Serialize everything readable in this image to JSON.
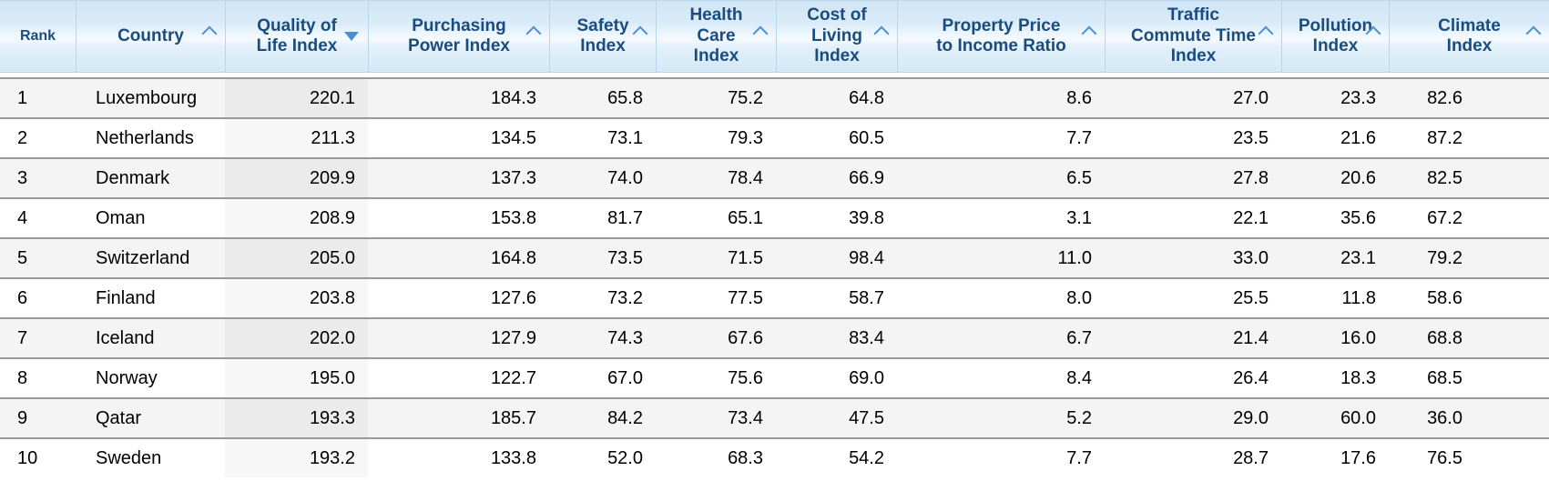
{
  "table": {
    "name": "quality-of-life-rankings",
    "columns": [
      {
        "key": "rank",
        "label": "Rank",
        "align": "left",
        "sort_indicator": "none",
        "sorted": false
      },
      {
        "key": "country",
        "label": "Country",
        "align": "left",
        "sort_indicator": "up",
        "sorted": false
      },
      {
        "key": "qol",
        "label": "Quality of\nLife Index",
        "align": "right",
        "sort_indicator": "down",
        "sorted": true
      },
      {
        "key": "pp",
        "label": "Purchasing\nPower Index",
        "align": "right",
        "sort_indicator": "up",
        "sorted": false
      },
      {
        "key": "safety",
        "label": "Safety\nIndex",
        "align": "right",
        "sort_indicator": "up",
        "sorted": false
      },
      {
        "key": "hc",
        "label": "Health\nCare\nIndex",
        "align": "right",
        "sort_indicator": "up",
        "sorted": false
      },
      {
        "key": "col",
        "label": "Cost of\nLiving\nIndex",
        "align": "right",
        "sort_indicator": "up",
        "sorted": false
      },
      {
        "key": "ppir",
        "label": "Property Price\nto Income Ratio",
        "align": "right",
        "sort_indicator": "up",
        "sorted": false
      },
      {
        "key": "tct",
        "label": "Traffic\nCommute Time\nIndex",
        "align": "right",
        "sort_indicator": "up",
        "sorted": false
      },
      {
        "key": "poll",
        "label": "Pollution\nIndex",
        "align": "right",
        "sort_indicator": "up",
        "sorted": false
      },
      {
        "key": "climate",
        "label": "Climate\nIndex",
        "align": "right",
        "sort_indicator": "up",
        "sorted": false
      }
    ],
    "rows": [
      [
        "1",
        "Luxembourg",
        "220.1",
        "184.3",
        "65.8",
        "75.2",
        "64.8",
        "8.6",
        "27.0",
        "23.3",
        "82.6"
      ],
      [
        "2",
        "Netherlands",
        "211.3",
        "134.5",
        "73.1",
        "79.3",
        "60.5",
        "7.7",
        "23.5",
        "21.6",
        "87.2"
      ],
      [
        "3",
        "Denmark",
        "209.9",
        "137.3",
        "74.0",
        "78.4",
        "66.9",
        "6.5",
        "27.8",
        "20.6",
        "82.5"
      ],
      [
        "4",
        "Oman",
        "208.9",
        "153.8",
        "81.7",
        "65.1",
        "39.8",
        "3.1",
        "22.1",
        "35.6",
        "67.2"
      ],
      [
        "5",
        "Switzerland",
        "205.0",
        "164.8",
        "73.5",
        "71.5",
        "98.4",
        "11.0",
        "33.0",
        "23.1",
        "79.2"
      ],
      [
        "6",
        "Finland",
        "203.8",
        "127.6",
        "73.2",
        "77.5",
        "58.7",
        "8.0",
        "25.5",
        "11.8",
        "58.6"
      ],
      [
        "7",
        "Iceland",
        "202.0",
        "127.9",
        "74.3",
        "67.6",
        "83.4",
        "6.7",
        "21.4",
        "16.0",
        "68.8"
      ],
      [
        "8",
        "Norway",
        "195.0",
        "122.7",
        "67.0",
        "75.6",
        "69.0",
        "8.4",
        "26.4",
        "18.3",
        "68.5"
      ],
      [
        "9",
        "Qatar",
        "193.3",
        "185.7",
        "84.2",
        "73.4",
        "47.5",
        "5.2",
        "29.0",
        "60.0",
        "36.0"
      ],
      [
        "10",
        "Sweden",
        "193.2",
        "133.8",
        "52.0",
        "68.3",
        "54.2",
        "7.7",
        "28.7",
        "17.6",
        "76.5"
      ]
    ],
    "colors": {
      "header_text": "#1b4c7f",
      "sort_icon": "#4a8fd3",
      "header_bg_top": "#d0e5f5",
      "header_bg_mid": "#f4fafe",
      "header_border": "#b9d5e9",
      "row_separator": "#999999",
      "row_odd_bg": "#f4f4f4",
      "row_even_bg": "#ffffff",
      "sorted_cell_odd_bg": "#ebebeb",
      "sorted_cell_even_bg": "#f7f7f7",
      "cell_text": "#000000"
    }
  },
  "chart_data": {
    "type": "table",
    "title": "Quality of Life Index by Country",
    "columns": [
      "Rank",
      "Country",
      "Quality of Life Index",
      "Purchasing Power Index",
      "Safety Index",
      "Health Care Index",
      "Cost of Living Index",
      "Property Price to Income Ratio",
      "Traffic Commute Time Index",
      "Pollution Index",
      "Climate Index"
    ],
    "sorted_by": "Quality of Life Index",
    "sort_direction": "descending",
    "rows": [
      [
        1,
        "Luxembourg",
        220.1,
        184.3,
        65.8,
        75.2,
        64.8,
        8.6,
        27.0,
        23.3,
        82.6
      ],
      [
        2,
        "Netherlands",
        211.3,
        134.5,
        73.1,
        79.3,
        60.5,
        7.7,
        23.5,
        21.6,
        87.2
      ],
      [
        3,
        "Denmark",
        209.9,
        137.3,
        74.0,
        78.4,
        66.9,
        6.5,
        27.8,
        20.6,
        82.5
      ],
      [
        4,
        "Oman",
        208.9,
        153.8,
        81.7,
        65.1,
        39.8,
        3.1,
        22.1,
        35.6,
        67.2
      ],
      [
        5,
        "Switzerland",
        205.0,
        164.8,
        73.5,
        71.5,
        98.4,
        11.0,
        33.0,
        23.1,
        79.2
      ],
      [
        6,
        "Finland",
        203.8,
        127.6,
        73.2,
        77.5,
        58.7,
        8.0,
        25.5,
        11.8,
        58.6
      ],
      [
        7,
        "Iceland",
        202.0,
        127.9,
        74.3,
        67.6,
        83.4,
        6.7,
        21.4,
        16.0,
        68.8
      ],
      [
        8,
        "Norway",
        195.0,
        122.7,
        67.0,
        75.6,
        69.0,
        8.4,
        26.4,
        18.3,
        68.5
      ],
      [
        9,
        "Qatar",
        193.3,
        185.7,
        84.2,
        73.4,
        47.5,
        5.2,
        29.0,
        60.0,
        36.0
      ],
      [
        10,
        "Sweden",
        193.2,
        133.8,
        52.0,
        68.3,
        54.2,
        7.7,
        28.7,
        17.6,
        76.5
      ]
    ]
  }
}
